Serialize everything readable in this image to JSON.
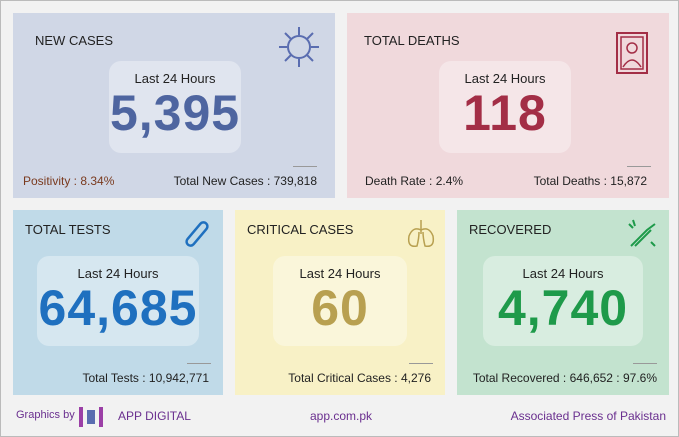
{
  "new_cases": {
    "title": "NEW CASES",
    "label": "Last 24 Hours",
    "value": "5,395",
    "positivity": "Positivity : 8.34%",
    "total": "Total New Cases : 739,818",
    "bg": "#d0d7e6",
    "color": "#4e65a0"
  },
  "total_deaths": {
    "title": "TOTAL DEATHS",
    "label": "Last 24 Hours",
    "value": "118",
    "rate": "Death Rate : 2.4%",
    "total": "Total Deaths : 15,872",
    "bg": "#f0d9dc",
    "color": "#a32e46"
  },
  "total_tests": {
    "title": "TOTAL TESTS",
    "label": "Last 24 Hours",
    "value": "64,685",
    "total": "Total Tests : 10,942,771",
    "bg": "#c0dae8",
    "color": "#1f70bf"
  },
  "critical": {
    "title": "CRITICAL CASES",
    "label": "Last 24 Hours",
    "value": "60",
    "total": "Total Critical Cases : 4,276",
    "bg": "#f8f1c6",
    "color": "#b8a050"
  },
  "recovered": {
    "title": "RECOVERED",
    "label": "Last 24 Hours",
    "value": "4,740",
    "total": "Total Recovered : 646,652 : 97.6%",
    "bg": "#c3e3cf",
    "color": "#1e9a4a"
  },
  "footer": {
    "graphics_by": "Graphics by",
    "brand": "APP DIGITAL",
    "site": "app.com.pk",
    "org": "Associated Press of Pakistan"
  }
}
